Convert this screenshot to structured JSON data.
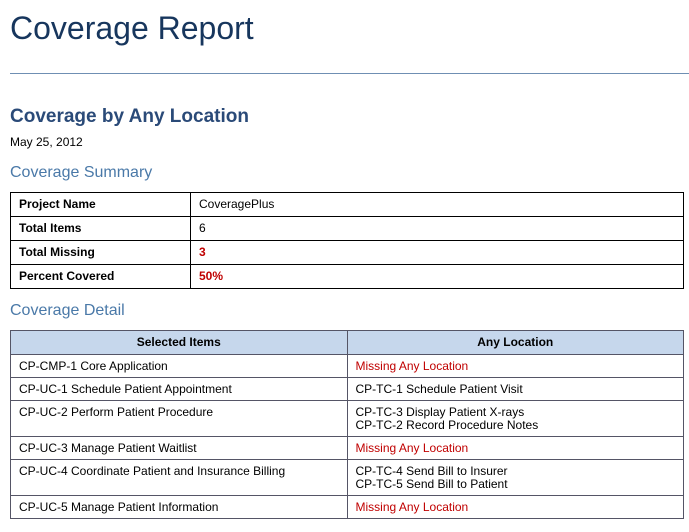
{
  "header": {
    "title": "Coverage Report"
  },
  "section": {
    "title": "Coverage by Any Location",
    "date": "May 25, 2012"
  },
  "summary": {
    "title": "Coverage Summary",
    "rows": [
      [
        "Project Name",
        "CoveragePlus"
      ],
      [
        "Total Items",
        "6"
      ],
      [
        "Total Missing",
        "3"
      ],
      [
        "Percent Covered",
        "50%"
      ]
    ]
  },
  "detail": {
    "title": "Coverage Detail",
    "columns": [
      "Selected Items",
      "Any Location"
    ],
    "rows": [
      {
        "item": "CP-CMP-1 Core Application",
        "locations": [
          "Missing Any Location"
        ]
      },
      {
        "item": "CP-UC-1 Schedule Patient Appointment",
        "locations": [
          "CP-TC-1 Schedule Patient Visit"
        ]
      },
      {
        "item": "CP-UC-2 Perform Patient Procedure",
        "locations": [
          "CP-TC-3 Display Patient X-rays",
          "CP-TC-2 Record Procedure Notes"
        ]
      },
      {
        "item": "CP-UC-3 Manage Patient Waitlist",
        "locations": [
          "Missing Any Location"
        ]
      },
      {
        "item": "CP-UC-4 Coordinate Patient and Insurance Billing",
        "locations": [
          "CP-TC-4 Send Bill to Insurer",
          "CP-TC-5 Send Bill to Patient"
        ]
      },
      {
        "item": "CP-UC-5 Manage Patient Information",
        "locations": [
          "Missing Any Location"
        ]
      }
    ]
  }
}
